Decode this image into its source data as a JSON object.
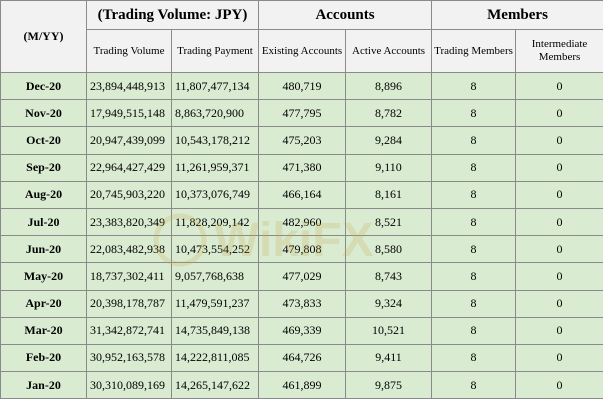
{
  "header": {
    "period_label": "(M/YY)",
    "group_trading": "(Trading Volume: JPY)",
    "group_accounts": "Accounts",
    "group_members": "Members",
    "sub": [
      "Trading Volume",
      "Trading Payment",
      "Existing Accounts",
      "Active Accounts",
      "Trading Members",
      "Intermediate Members"
    ]
  },
  "rows": [
    {
      "period": "Dec-20",
      "volume": "23,894,448,913",
      "payment": "11,807,477,134",
      "existing": "480,719",
      "active": "8,896",
      "trading_members": "8",
      "intermediate_members": "0"
    },
    {
      "period": "Nov-20",
      "volume": "17,949,515,148",
      "payment": "8,863,720,900",
      "existing": "477,795",
      "active": "8,782",
      "trading_members": "8",
      "intermediate_members": "0"
    },
    {
      "period": "Oct-20",
      "volume": "20,947,439,099",
      "payment": "10,543,178,212",
      "existing": "475,203",
      "active": "9,284",
      "trading_members": "8",
      "intermediate_members": "0"
    },
    {
      "period": "Sep-20",
      "volume": "22,964,427,429",
      "payment": "11,261,959,371",
      "existing": "471,380",
      "active": "9,110",
      "trading_members": "8",
      "intermediate_members": "0"
    },
    {
      "period": "Aug-20",
      "volume": "20,745,903,220",
      "payment": "10,373,076,749",
      "existing": "466,164",
      "active": "8,161",
      "trading_members": "8",
      "intermediate_members": "0"
    },
    {
      "period": "Jul-20",
      "volume": "23,383,820,349",
      "payment": "11,828,209,142",
      "existing": "482,960",
      "active": "8,521",
      "trading_members": "8",
      "intermediate_members": "0"
    },
    {
      "period": "Jun-20",
      "volume": "22,083,482,938",
      "payment": "10,473,554,252",
      "existing": "479,808",
      "active": "8,580",
      "trading_members": "8",
      "intermediate_members": "0"
    },
    {
      "period": "May-20",
      "volume": "18,737,302,411",
      "payment": "9,057,768,638",
      "existing": "477,029",
      "active": "8,743",
      "trading_members": "8",
      "intermediate_members": "0"
    },
    {
      "period": "Apr-20",
      "volume": "20,398,178,787",
      "payment": "11,479,591,237",
      "existing": "473,833",
      "active": "9,324",
      "trading_members": "8",
      "intermediate_members": "0"
    },
    {
      "period": "Mar-20",
      "volume": "31,342,872,741",
      "payment": "14,735,849,138",
      "existing": "469,339",
      "active": "10,521",
      "trading_members": "8",
      "intermediate_members": "0"
    },
    {
      "period": "Feb-20",
      "volume": "30,952,163,578",
      "payment": "14,222,811,085",
      "existing": "464,726",
      "active": "9,411",
      "trading_members": "8",
      "intermediate_members": "0"
    },
    {
      "period": "Jan-20",
      "volume": "30,310,089,169",
      "payment": "14,265,147,622",
      "existing": "461,899",
      "active": "9,875",
      "trading_members": "8",
      "intermediate_members": "0"
    }
  ],
  "watermark": {
    "text": "WikiFX",
    "color": "#c9a64a"
  },
  "colors": {
    "row_bg": "#d9ecd2",
    "header_bg": "#f2f2f2",
    "border": "#8a8a8a"
  }
}
